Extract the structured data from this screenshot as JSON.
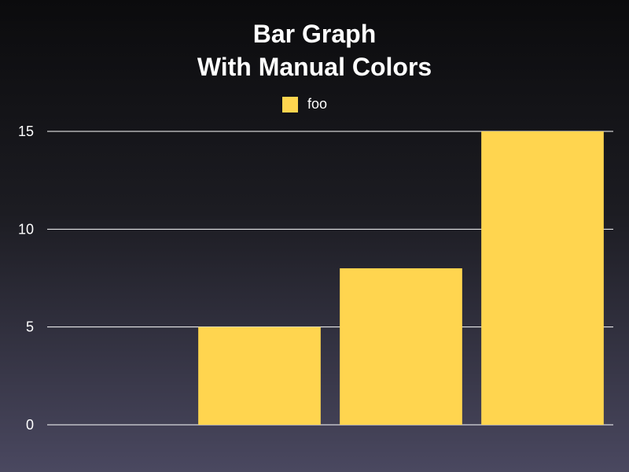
{
  "chart_data": {
    "type": "bar",
    "title_lines": [
      "Bar Graph",
      "With Manual Colors"
    ],
    "categories": [
      "",
      "",
      "",
      ""
    ],
    "series": [
      {
        "name": "foo",
        "values": [
          0,
          5,
          8,
          15
        ],
        "color": "#ffd54f"
      }
    ],
    "ylim": [
      0,
      15
    ],
    "yticks": [
      0,
      5,
      10,
      15
    ],
    "grid": true,
    "legend_position": "top-center",
    "grid_color": "#ffffff",
    "axis_label_color": "#ffffff"
  }
}
